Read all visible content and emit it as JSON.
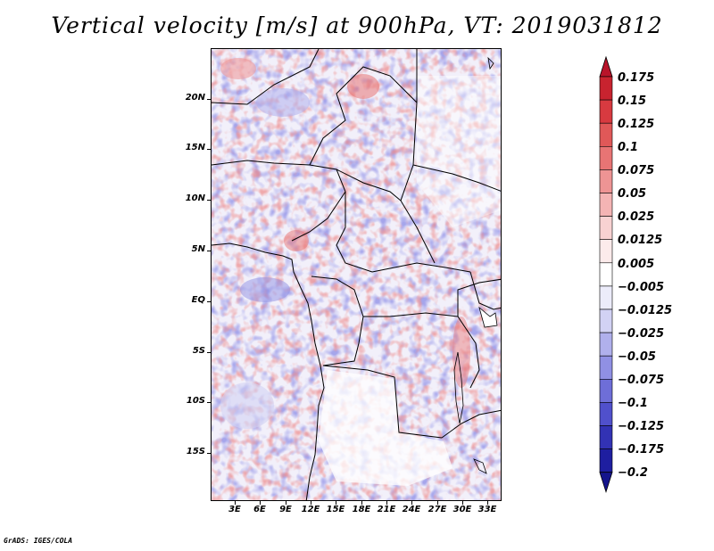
{
  "title": "Vertical velocity [m/s] at 900hPa, VT: 2019031812",
  "credit": "GrADS: IGES/COLA",
  "latitude_labels": [
    "20N",
    "15N",
    "10N",
    "5N",
    "EQ",
    "5S",
    "10S",
    "15S"
  ],
  "longitude_labels": [
    "3E",
    "6E",
    "9E",
    "12E",
    "15E",
    "18E",
    "21E",
    "24E",
    "27E",
    "30E",
    "33E"
  ],
  "colorbar": {
    "labels": [
      "0.175",
      "0.15",
      "0.125",
      "0.1",
      "0.075",
      "0.05",
      "0.025",
      "0.0125",
      "0.005",
      "−0.005",
      "−0.0125",
      "−0.025",
      "−0.05",
      "−0.075",
      "−0.1",
      "−0.125",
      "−0.175",
      "−0.2"
    ],
    "colors": [
      "#b8142a",
      "#c8232f",
      "#d83a40",
      "#e05858",
      "#e87474",
      "#ee9494",
      "#f4b4b4",
      "#f8d2d2",
      "#fcebeb",
      "#ffffff",
      "#ececfa",
      "#d2d2f4",
      "#b0b0ec",
      "#9090e4",
      "#6e6ed8",
      "#5050cc",
      "#3232b4",
      "#1e1ea0",
      "#14148c"
    ]
  }
}
